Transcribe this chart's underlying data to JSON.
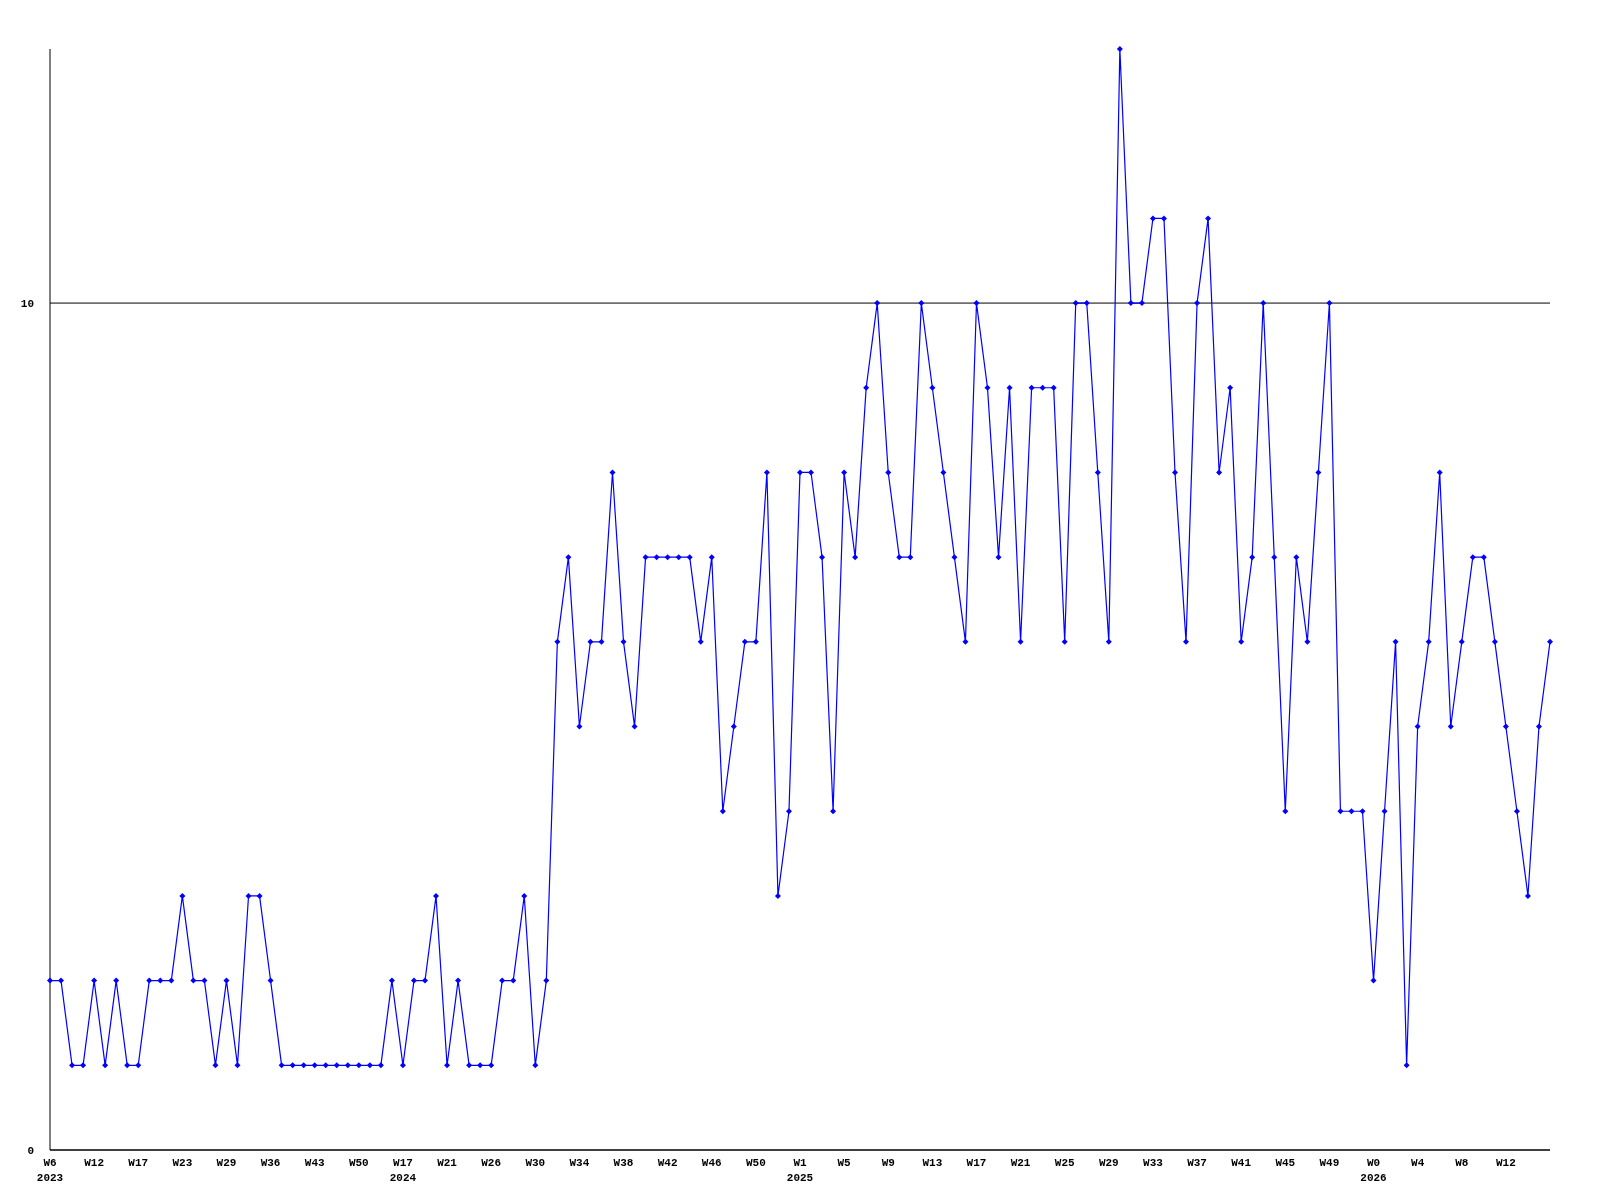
{
  "chart_data": {
    "type": "line",
    "categories": [
      "W6\n2023",
      null,
      null,
      null,
      "W12",
      null,
      null,
      null,
      "W17",
      null,
      null,
      null,
      "W23",
      null,
      null,
      null,
      "W29",
      null,
      null,
      null,
      "W36",
      null,
      null,
      null,
      "W43",
      null,
      null,
      null,
      "W50",
      null,
      null,
      null,
      "W17\n2024",
      null,
      null,
      null,
      "W21",
      null,
      null,
      null,
      "W26",
      null,
      null,
      null,
      "W30",
      null,
      null,
      null,
      "W34",
      null,
      null,
      null,
      "W38",
      null,
      null,
      null,
      "W42",
      null,
      null,
      null,
      "W46",
      null,
      null,
      null,
      "W50",
      null,
      null,
      null,
      "W1\n2025",
      null,
      null,
      null,
      "W5",
      null,
      null,
      null,
      "W9",
      null,
      null,
      null,
      "W13",
      null,
      null,
      null,
      "W17",
      null,
      null,
      null,
      "W21",
      null,
      null,
      null,
      "W25",
      null,
      null,
      null,
      "W29",
      null,
      null,
      null,
      "W33",
      null,
      null,
      null,
      "W37",
      null,
      null,
      null,
      "W41",
      null,
      null,
      null,
      "W45",
      null,
      null,
      null,
      "W49",
      null,
      null,
      null,
      "W0\n2026",
      null,
      null,
      null,
      "W4",
      null,
      null,
      null,
      "W8",
      null,
      null,
      null,
      "W12",
      null,
      null,
      null,
      null
    ],
    "series": [
      {
        "color": "#0000ff",
        "values": [
          2,
          2,
          1,
          1,
          2,
          1,
          2,
          1,
          1,
          2,
          2,
          2,
          3,
          2,
          2,
          1,
          2,
          1,
          3,
          3,
          2,
          1,
          1,
          1,
          1,
          1,
          1,
          1,
          1,
          1,
          1,
          2,
          1,
          2,
          2,
          3,
          1,
          2,
          1,
          1,
          1,
          2,
          2,
          3,
          1,
          2,
          6,
          7,
          5,
          6,
          6,
          8,
          6,
          5,
          7,
          7,
          7,
          7,
          7,
          6,
          7,
          4,
          5,
          6,
          6,
          8,
          3,
          4,
          8,
          8,
          7,
          4,
          8,
          7,
          9,
          10,
          8,
          7,
          7,
          10,
          9,
          8,
          7,
          6,
          10,
          9,
          7,
          9,
          6,
          9,
          9,
          9,
          6,
          10,
          10,
          8,
          6,
          13,
          10,
          10,
          11,
          11,
          8,
          6,
          10,
          11,
          8,
          9,
          6,
          7,
          10,
          7,
          4,
          7,
          6,
          8,
          10,
          4,
          4,
          4,
          2,
          4,
          6,
          1,
          5,
          6,
          8,
          5,
          6,
          7,
          7,
          6,
          5,
          4,
          3,
          5,
          6
        ]
      }
    ],
    "ylim": [
      0,
      13
    ],
    "yticks": [
      0,
      10
    ],
    "grid": "y",
    "marker": "diamond",
    "line_style": "solid"
  }
}
